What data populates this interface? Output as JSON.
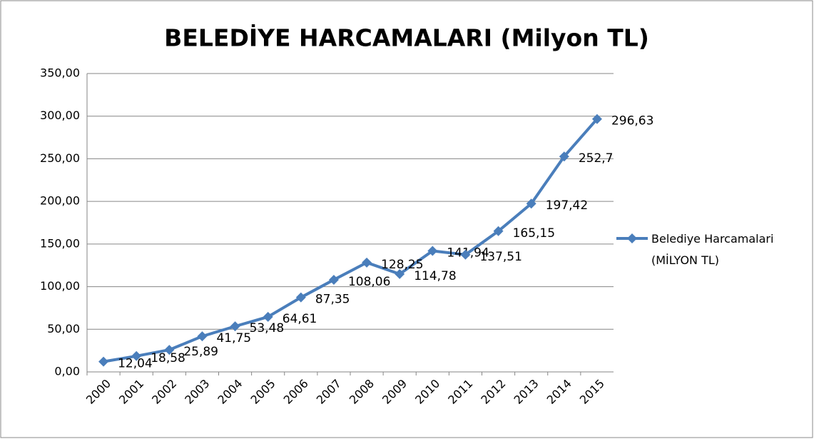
{
  "chart_data": {
    "type": "line",
    "title": "BELEDİYE HARCAMALARI (Milyon TL)",
    "categories": [
      "2000",
      "2001",
      "2002",
      "2003",
      "2004",
      "2005",
      "2006",
      "2007",
      "2008",
      "2009",
      "2010",
      "2011",
      "2012",
      "2013",
      "2014",
      "2015"
    ],
    "series": [
      {
        "name": "Belediye Harcamalari (MİLYON TL)",
        "color": "#4a7ebb",
        "values": [
          12.04,
          18.58,
          25.89,
          41.75,
          53.48,
          64.61,
          87.35,
          108.06,
          128.25,
          114.78,
          141.94,
          137.51,
          165.15,
          197.42,
          252.7,
          296.63
        ],
        "value_labels": [
          "12,04",
          "18,58",
          "25,89",
          "41,75",
          "53,48",
          "64,61",
          "87,35",
          "108,06",
          "128,25",
          "114,78",
          "141,94",
          "137,51",
          "165,15",
          "197,42",
          "252,7",
          "296,63"
        ]
      }
    ],
    "ylim": [
      0,
      350
    ],
    "yticks": [
      {
        "value": 0,
        "label": "0,00"
      },
      {
        "value": 50,
        "label": "50,00"
      },
      {
        "value": 100,
        "label": "100,00"
      },
      {
        "value": 150,
        "label": "150,00"
      },
      {
        "value": 200,
        "label": "200,00"
      },
      {
        "value": 250,
        "label": "250,00"
      },
      {
        "value": 300,
        "label": "300,00"
      },
      {
        "value": 350,
        "label": "350,00"
      }
    ],
    "grid": true,
    "legend": "right"
  }
}
